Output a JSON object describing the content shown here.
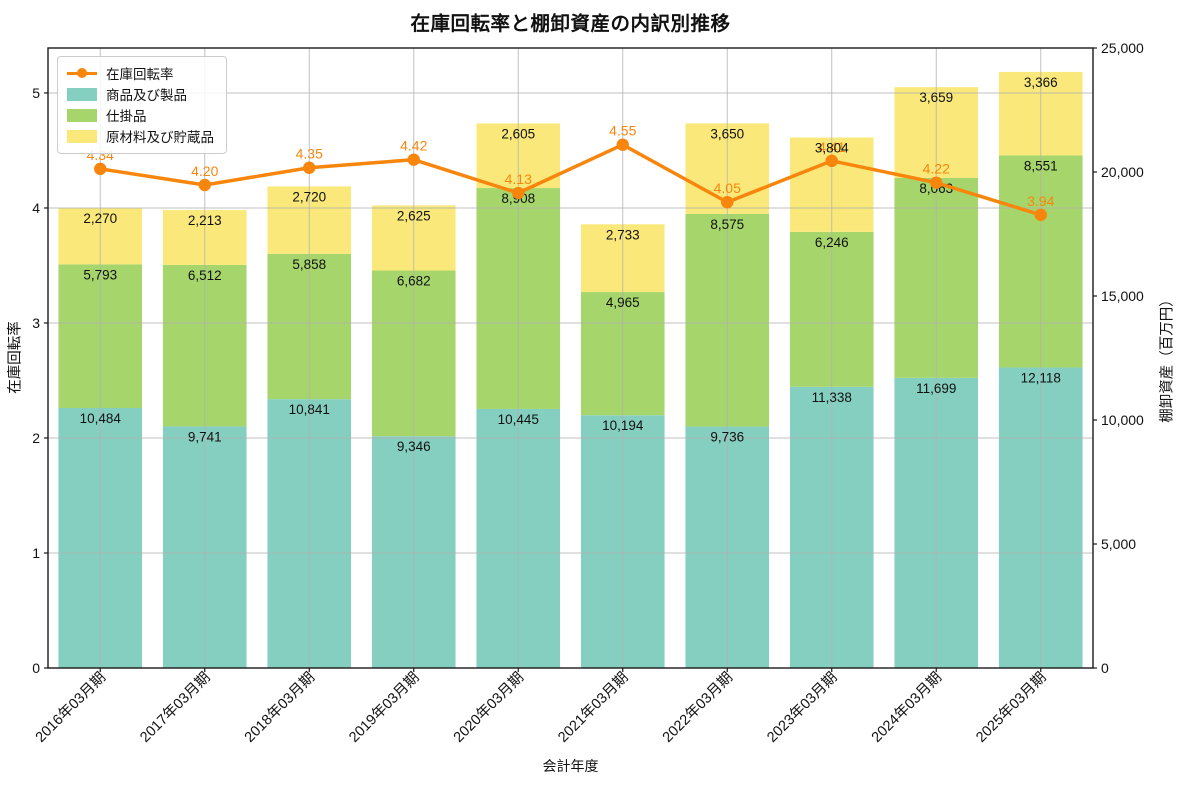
{
  "chart_data": {
    "type": "bar",
    "subtype": "stacked-bars-with-line",
    "title": "在庫回転率と棚卸資産の内訳別推移",
    "xlabel": "会計年度",
    "ylabel_left": "在庫回転率",
    "ylabel_right": "棚卸資産（百万円）",
    "categories": [
      "2016年03月期",
      "2017年03月期",
      "2018年03月期",
      "2019年03月期",
      "2020年03月期",
      "2021年03月期",
      "2022年03月期",
      "2023年03月期",
      "2024年03月期",
      "2025年03月期"
    ],
    "line_series": {
      "key": "turnover",
      "name": "在庫回転率",
      "color": "#f8860d",
      "values": [
        4.34,
        4.2,
        4.35,
        4.42,
        4.13,
        4.55,
        4.05,
        4.41,
        4.22,
        3.94
      ]
    },
    "bar_series": [
      {
        "key": "products",
        "name": "商品及び製品",
        "color": "#85cfc1",
        "values": [
          10484,
          9741,
          10841,
          9346,
          10445,
          10194,
          9736,
          11338,
          11699,
          12118
        ]
      },
      {
        "key": "work-in-process",
        "name": "仕掛品",
        "color": "#a6d66b",
        "values": [
          5793,
          6512,
          5858,
          6682,
          8908,
          4965,
          8575,
          6246,
          8063,
          8551
        ]
      },
      {
        "key": "raw-materials",
        "name": "原材料及び貯蔵品",
        "color": "#fae97a",
        "values": [
          2270,
          2213,
          2720,
          2625,
          2605,
          2733,
          3650,
          3804,
          3659,
          3366
        ]
      }
    ],
    "left_axis": {
      "ticks": [
        0,
        1,
        2,
        3,
        4,
        5
      ],
      "max": 5.391
    },
    "right_axis": {
      "ticks": [
        0,
        5000,
        10000,
        15000,
        20000,
        25000
      ],
      "max": 25000
    },
    "grid": "on",
    "grid_color": "#b0b0b0",
    "spine_color": "#1a1a1a",
    "label_color": "#111111",
    "legend_position": "upper-left"
  }
}
